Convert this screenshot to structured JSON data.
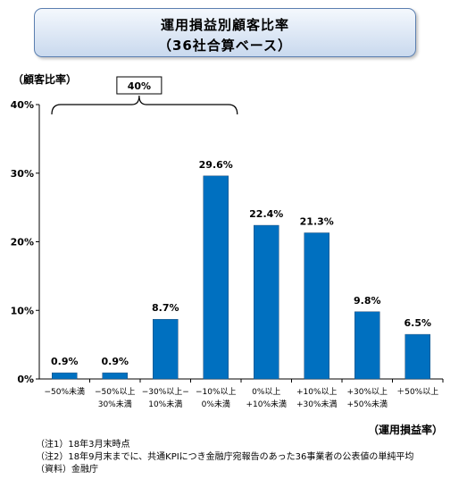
{
  "chart_data": {
    "type": "bar",
    "title": "運用損益別顧客比率",
    "subtitle": "（36社合算ベース）",
    "ylabel": "（顧客比率）",
    "xlabel": "（運用損益率）",
    "ylim": [
      0,
      40
    ],
    "yticks": [
      "0%",
      "10%",
      "20%",
      "30%",
      "40%"
    ],
    "categories": [
      [
        "−50%未満"
      ],
      [
        "−50%以上",
        "30%未満"
      ],
      [
        "−30%以上−",
        "10%未満"
      ],
      [
        "−10%以上",
        "0%未満"
      ],
      [
        "0%以上",
        "+10%未満"
      ],
      [
        "+10%以上",
        "+30%未満"
      ],
      [
        "+30%以上",
        "+50%未満"
      ],
      [
        "＋50%以上"
      ]
    ],
    "values": [
      0.9,
      0.9,
      8.7,
      29.6,
      22.4,
      21.3,
      9.8,
      6.5
    ],
    "value_labels": [
      "0.9%",
      "0.9%",
      "8.7%",
      "29.6%",
      "22.4%",
      "21.3%",
      "9.8%",
      "6.5%"
    ],
    "bar_color": "#0070c0",
    "grid": false,
    "annotation": {
      "text": "40%",
      "bracket_from": 0,
      "bracket_to": 3
    }
  },
  "notes": [
    "（注1）18年3月末時点",
    "（注2）18年9月末までに、共通KPIにつき金融庁宛報告のあった36事業者の公表値の単純平均",
    "（資料）金融庁"
  ]
}
